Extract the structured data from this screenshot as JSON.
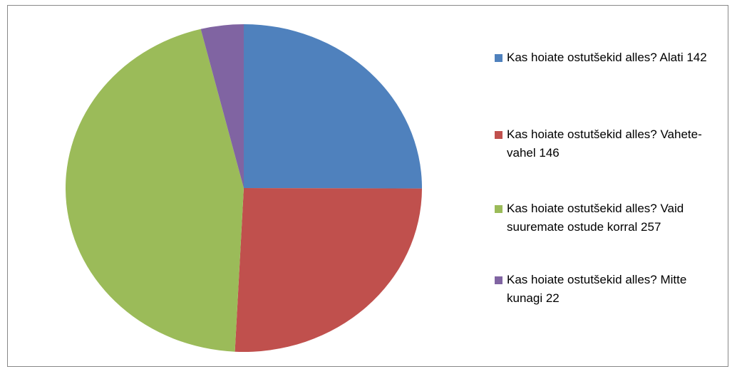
{
  "chart_data": {
    "type": "pie",
    "categories": [
      "Kas hoiate ostutšekid alles? Alati 142",
      "Kas hoiate ostutšekid alles? Vahete-vahel 146",
      "Kas hoiate ostutšekid alles? Vaid suuremate ostude korral 257",
      "Kas hoiate ostutšekid alles? Mitte kunagi 22"
    ],
    "values": [
      142,
      146,
      257,
      22
    ],
    "colors": [
      "#4f81bd",
      "#c0504d",
      "#9bbb59",
      "#8064a2"
    ],
    "legend": "right"
  }
}
